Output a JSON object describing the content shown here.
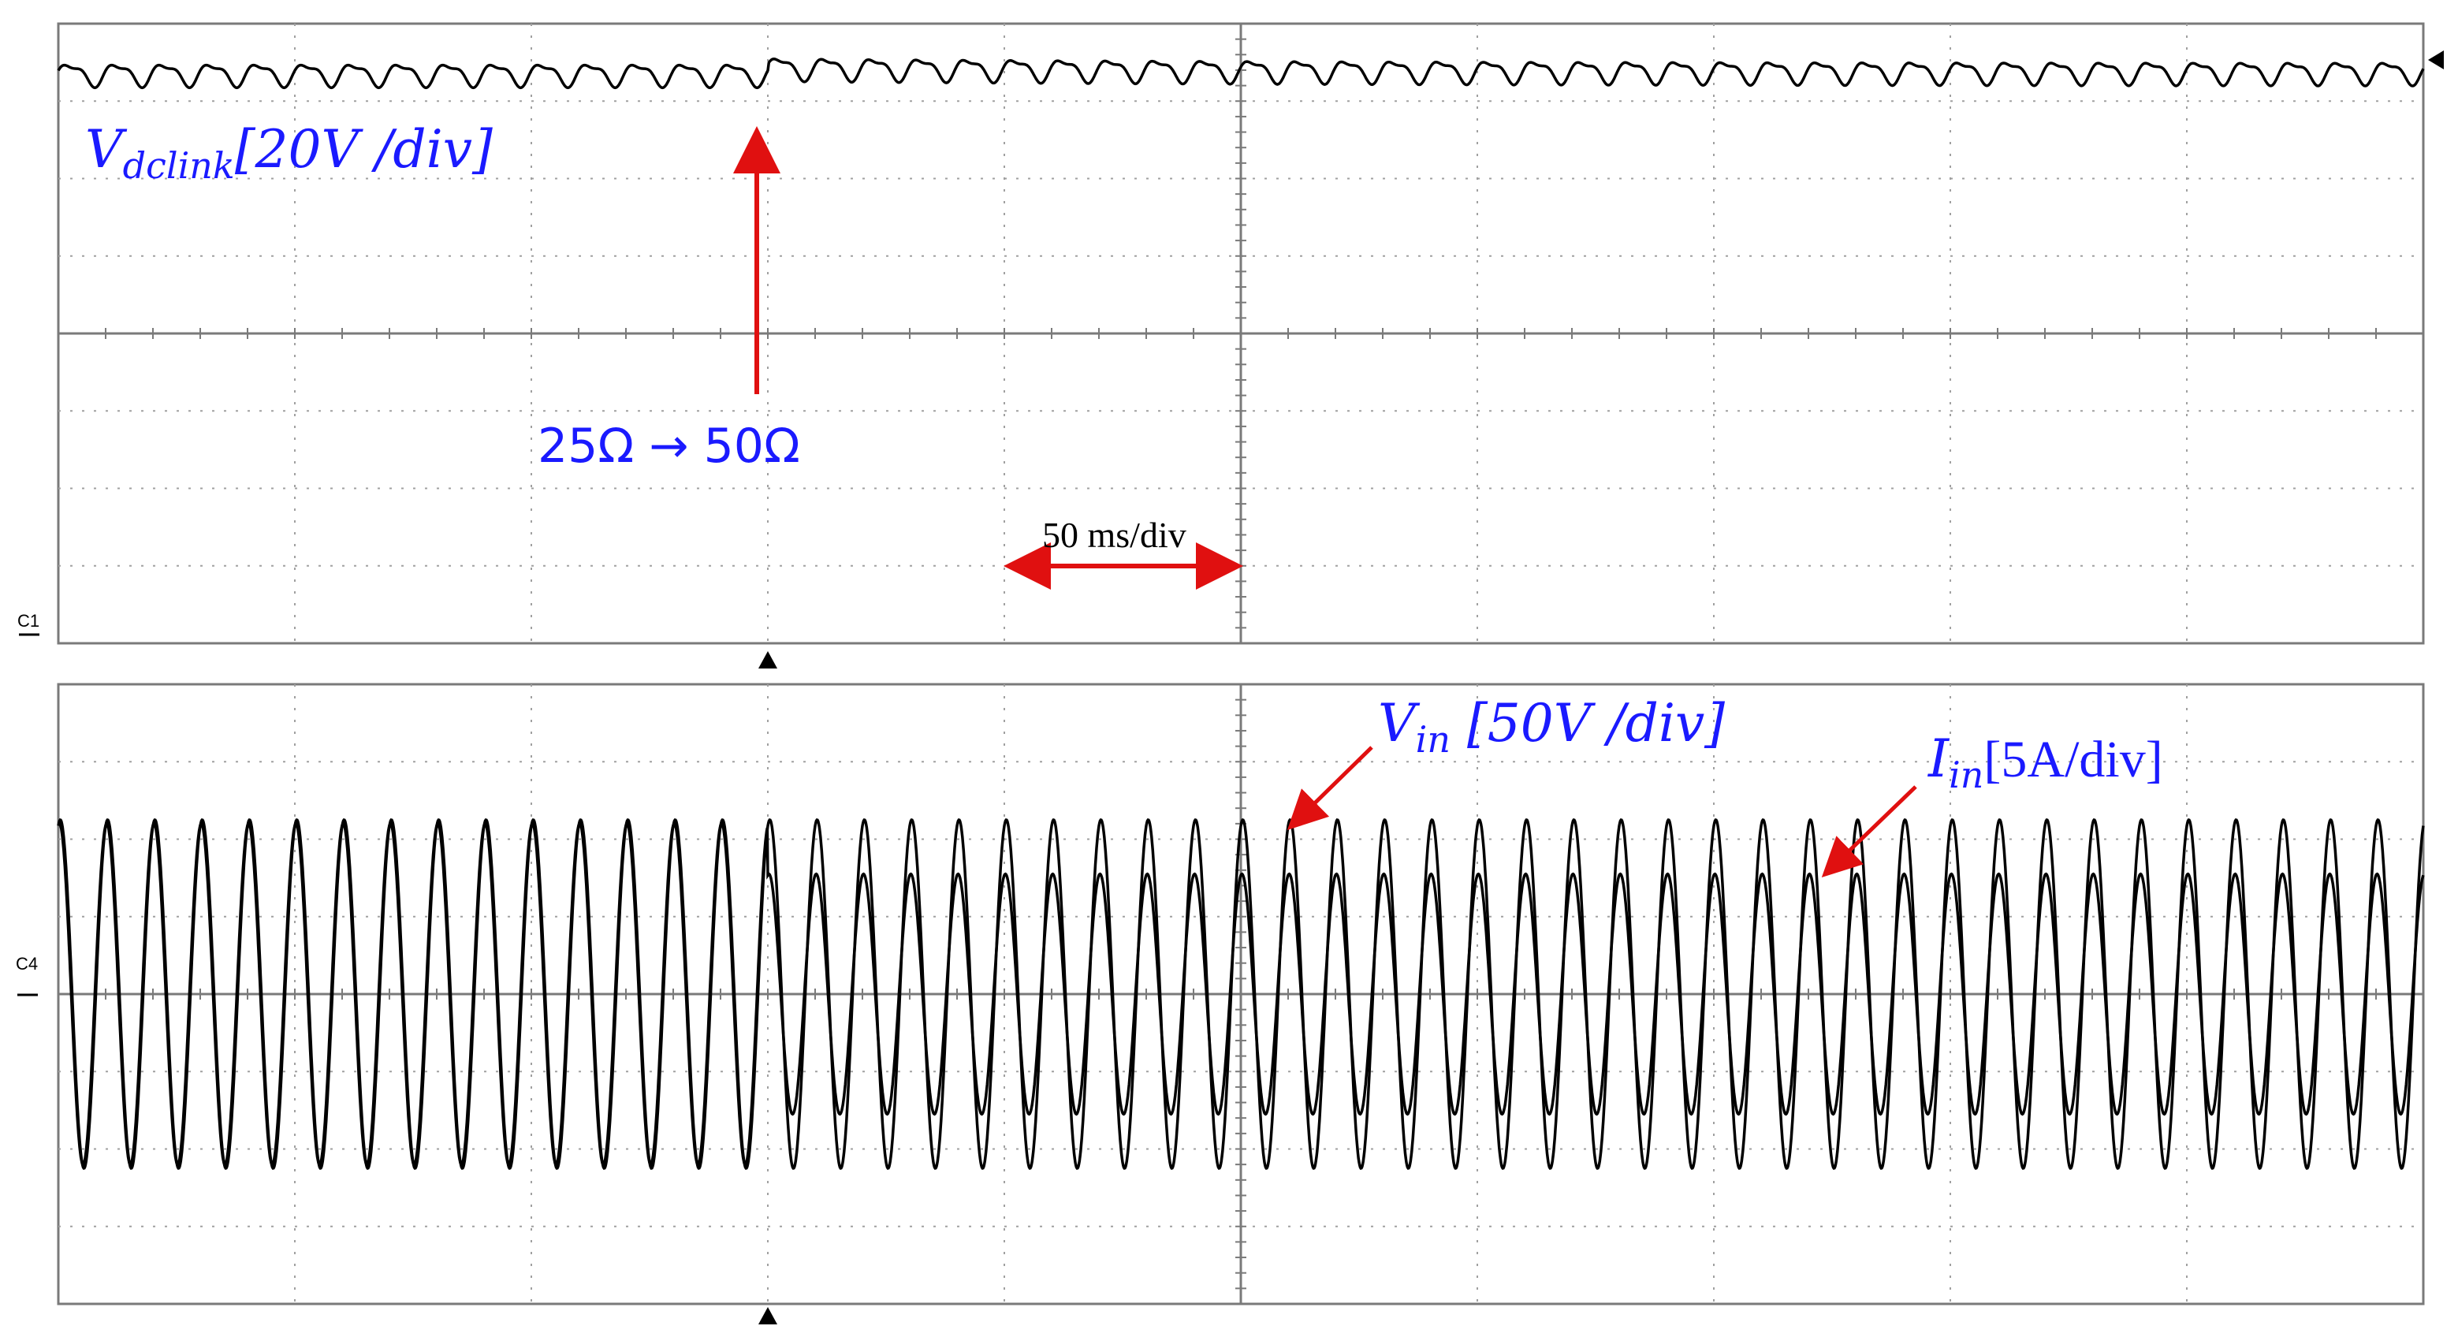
{
  "chart_data": [
    {
      "type": "line",
      "panel": "top",
      "channel_label": "C1",
      "time_per_div_ms": 50,
      "divisions": {
        "x": 10,
        "y": 8
      },
      "time_range_ms": [
        0,
        500
      ],
      "series": [
        {
          "name": "Vdclink",
          "scale": "20V /div",
          "baseline_div": 3.35,
          "ripple_div": 0.13,
          "ripple_period_ms": 10
        }
      ],
      "event": {
        "time_ms": 150,
        "label": "25Ω → 50Ω"
      },
      "annotations": {
        "vdc_symbol": "V",
        "vdc_subscript": "dclink",
        "vdc_scale": "[20V /div]",
        "step_label": "25Ω  → 50Ω",
        "timebase_label": "50 ms/div"
      },
      "colors": {
        "trace": "#000000",
        "grid": "#808080",
        "label": "#1a1aff",
        "arrow": "#e01010"
      }
    },
    {
      "type": "line",
      "panel": "bottom",
      "channel_label": "C4",
      "time_per_div_ms": 50,
      "divisions": {
        "x": 10,
        "y": 8
      },
      "time_range_ms": [
        0,
        500
      ],
      "series": [
        {
          "name": "Vin",
          "scale": "50V /div",
          "amplitude_div": 2.25,
          "frequency_hz": 100,
          "phase_deg": 0
        },
        {
          "name": "Iin",
          "scale": "5A/div",
          "amplitude_before_div": 2.2,
          "amplitude_after_div": 1.55,
          "frequency_hz": 100,
          "phase_deg": 0
        }
      ],
      "annotations": {
        "vin_symbol": "V",
        "vin_subscript": "in",
        "vin_scale": " [50V /div]",
        "iin_symbol": "I",
        "iin_subscript": "in",
        "iin_scale": "[5A/div]"
      },
      "colors": {
        "trace": "#000000",
        "grid": "#808080",
        "label": "#1a1aff",
        "arrow": "#e01010"
      }
    }
  ]
}
